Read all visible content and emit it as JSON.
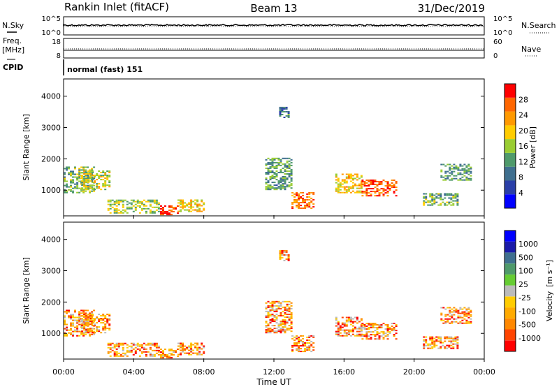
{
  "header": {
    "title": "Rankin Inlet (fitACF)",
    "beam": "Beam 13",
    "date": "31/Dec/2019"
  },
  "status": {
    "nsky_label": "N.Sky",
    "nsearch_label": "N.Search",
    "freq_label": "Freq.",
    "freq_unit": "[MHz]",
    "nave_label": "Nave",
    "cpid_label": "CPID",
    "cpid_value": "normal (fast) 151",
    "noise_ticks": [
      "10^5",
      "10^0"
    ],
    "freq_ticks": [
      "18",
      "8"
    ],
    "nave_ticks": [
      "60",
      "0"
    ]
  },
  "colors": {
    "power_scale": [
      "#0000ff",
      "#2a3fa8",
      "#3f6f8f",
      "#4f9a6b",
      "#9acd32",
      "#ffcc00",
      "#ff9900",
      "#ff6600",
      "#ff0000"
    ],
    "velocity_scale": [
      "#ff0000",
      "#ff4400",
      "#ff8800",
      "#ffaa00",
      "#ffcc00",
      "#bbbbbb",
      "#66cc33",
      "#4f9a6b",
      "#3f6f8f",
      "#1a1aa8",
      "#0000ff"
    ]
  },
  "chart_data": [
    {
      "type": "heatmap",
      "name": "power-panel",
      "ylabel": "Slant Range [km]",
      "y_ticks": [
        "4000",
        "3000",
        "2000",
        "1000"
      ],
      "colorbar_label": "Power [dB]",
      "colorbar_ticks": [
        "28",
        "24",
        "20",
        "16",
        "12",
        "8",
        "4"
      ],
      "x_ticks": [
        "00:00",
        "04:00",
        "08:00",
        "12:00",
        "16:00",
        "20:00",
        "00:00"
      ],
      "xlim": [
        0,
        24
      ],
      "ylim": [
        180,
        4550
      ],
      "clim": [
        0,
        32
      ]
    },
    {
      "type": "heatmap",
      "name": "velocity-panel",
      "ylabel": "Slant Range [km]",
      "y_ticks": [
        "4000",
        "3000",
        "2000",
        "1000"
      ],
      "colorbar_label": "Velocity",
      "colorbar_unit": "[m s⁻¹]",
      "colorbar_ticks": [
        "1000",
        "500",
        "100",
        "25",
        "-25",
        "-100",
        "-500",
        "-1000"
      ],
      "x_ticks": [
        "00:00",
        "04:00",
        "08:00",
        "12:00",
        "16:00",
        "20:00",
        "00:00"
      ],
      "xlabel": "Time UT",
      "xlim": [
        0,
        24
      ],
      "ylim": [
        180,
        4550
      ]
    }
  ]
}
